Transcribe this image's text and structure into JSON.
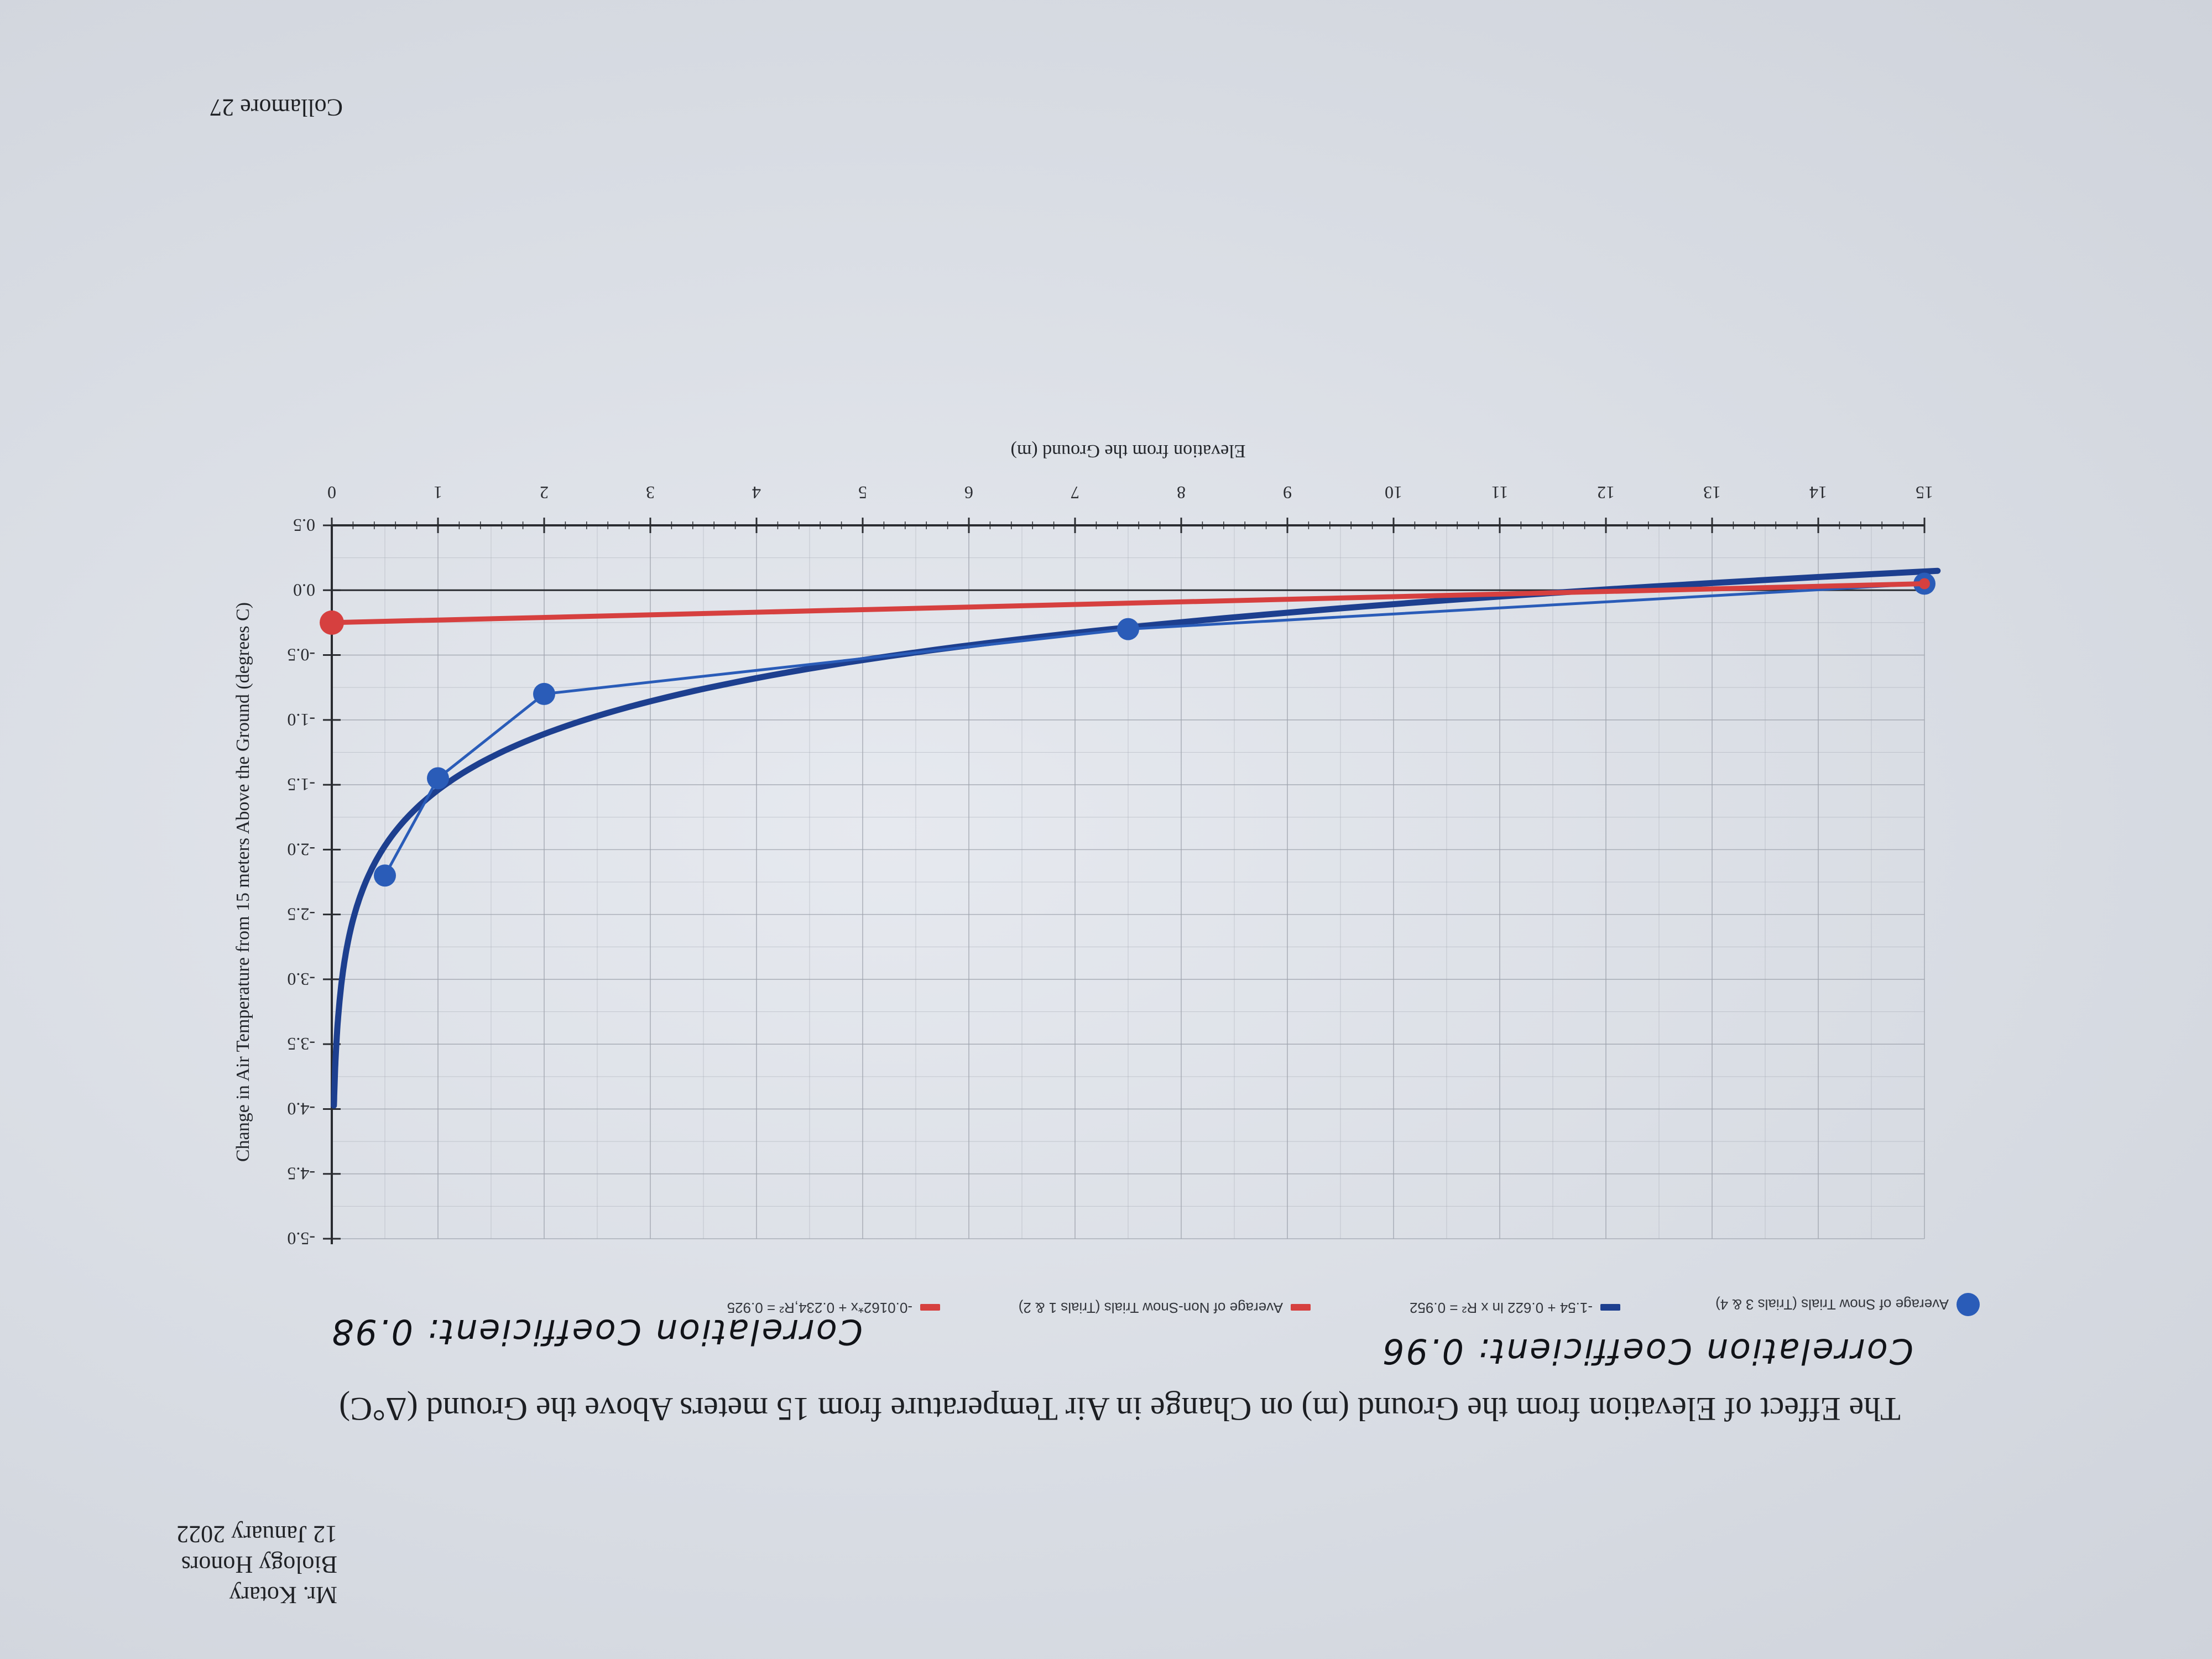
{
  "header": {
    "page_label": "Collamore 27",
    "teacher": "Mr. Kotary",
    "course": "Biology Honors",
    "date": "12 January 2022"
  },
  "annotations": {
    "snow_correlation": "Correlation Coefficient: 0.98",
    "nonsnow_correlation": "Correlation Coefficient: 0.96"
  },
  "colors": {
    "snow": "#2a5cb8",
    "snow_fit": "#1d3f8f",
    "nonsnow": "#d6403f",
    "grid": "#9ea3ad",
    "axis": "#2a2c31"
  },
  "chart_data": {
    "type": "line",
    "orientation": "horizontal-category",
    "title": "The Effect of Elevation from the Ground (m) on Change in Air Temperature from 15 meters Above the Ground (Δ°C)",
    "xlabel": "Change in Air Temperature from 15 meters Above the Ground (degrees C)",
    "ylabel": "Elevation from the Ground (m)",
    "xlim": [
      -5.0,
      0.5
    ],
    "ylim": [
      0,
      15
    ],
    "x_ticks": [
      "-5.0",
      "-4.5",
      "-4.0",
      "-3.5",
      "-3.0",
      "-2.5",
      "-2.0",
      "-1.5",
      "-1.0",
      "-0.5",
      "0.0",
      "0.5"
    ],
    "y_ticks": [
      "0",
      "1",
      "2",
      "3",
      "4",
      "5",
      "6",
      "7",
      "8",
      "9",
      "10",
      "11",
      "12",
      "13",
      "14",
      "15"
    ],
    "grid": true,
    "legend_position": "top",
    "series": [
      {
        "name": "Average of Snow Trials (Trials 3 & 4)",
        "role": "data",
        "points": [
          {
            "temp": -2.2,
            "elev": 0.5
          },
          {
            "temp": -1.45,
            "elev": 1.0
          },
          {
            "temp": -0.8,
            "elev": 2.0
          },
          {
            "temp": -0.3,
            "elev": 7.5
          },
          {
            "temp": 0.05,
            "elev": 15.0
          }
        ]
      },
      {
        "name": "-1.54 + 0.622 ln x R² = 0.952",
        "role": "trendline",
        "equation": "y = -1.54 + 0.622 ln x"
      },
      {
        "name": "Average of Non-Snow Trials (Trials 1 & 2)",
        "role": "data",
        "points": [
          {
            "temp": -0.25,
            "elev": 0.0
          },
          {
            "temp": 0.05,
            "elev": 15.0
          }
        ]
      },
      {
        "name": "-0.0162*x + 0.234,R² = 0.925",
        "role": "trendline",
        "equation": "y = -0.0162x + 0.234"
      }
    ]
  }
}
